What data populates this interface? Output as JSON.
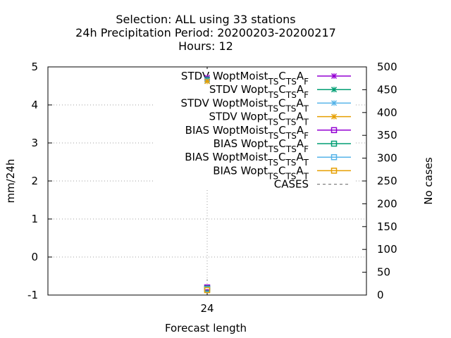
{
  "chart_data": {
    "type": "line",
    "title_lines": [
      "Selection: ALL using    33 stations",
      "24h Precipitation   Period: 20200203-20200217",
      "Hours:  12"
    ],
    "xlabel": "Forecast length",
    "ylabel": "mm/24h",
    "y2label": "No cases",
    "x": [
      24
    ],
    "x_tick_labels": [
      "24"
    ],
    "ylim": [
      -1,
      5
    ],
    "yticks": [
      -1,
      0,
      1,
      2,
      3,
      4,
      5
    ],
    "y_tick_labels": [
      "-1",
      "0",
      "1",
      "2",
      "3",
      "4",
      "5"
    ],
    "y2lim": [
      0,
      500
    ],
    "y2ticks": [
      0,
      50,
      100,
      150,
      200,
      250,
      300,
      350,
      400,
      450,
      500
    ],
    "y2_tick_labels": [
      "0",
      "50",
      "100",
      "150",
      "200",
      "250",
      "300",
      "350",
      "400",
      "450",
      "500"
    ],
    "grid": true,
    "series": [
      {
        "name": "STDV WoptMoist",
        "sub1": "TS",
        "mid": "C",
        "sub2": "TS",
        "tail": "A",
        "sub3": "F",
        "color": "#9400d3",
        "marker": "x",
        "axis": "y",
        "values": [
          4.72
        ]
      },
      {
        "name": "STDV Wopt",
        "sub1": "TS",
        "mid": "C",
        "sub2": "TS",
        "tail": "A",
        "sub3": "F",
        "color": "#009e73",
        "marker": "x",
        "axis": "y",
        "values": [
          4.68
        ]
      },
      {
        "name": "STDV WoptMoist",
        "sub1": "TS",
        "mid": "C",
        "sub2": "TS",
        "tail": "A",
        "sub3": "T",
        "color": "#56b4e9",
        "marker": "x",
        "axis": "y",
        "values": [
          4.64
        ]
      },
      {
        "name": "STDV Wopt",
        "sub1": "TS",
        "mid": "C",
        "sub2": "TS",
        "tail": "A",
        "sub3": "T",
        "color": "#e69f00",
        "marker": "x",
        "axis": "y",
        "values": [
          4.62
        ]
      },
      {
        "name": "BIAS WoptMoist",
        "sub1": "TS",
        "mid": "C",
        "sub2": "TS",
        "tail": "A",
        "sub3": "F",
        "color": "#9400d3",
        "marker": "square",
        "axis": "y",
        "values": [
          -0.8
        ]
      },
      {
        "name": "BIAS Wopt",
        "sub1": "TS",
        "mid": "C",
        "sub2": "TS",
        "tail": "A",
        "sub3": "F",
        "color": "#009e73",
        "marker": "square",
        "axis": "y",
        "values": [
          -0.83
        ]
      },
      {
        "name": "BIAS WoptMoist",
        "sub1": "TS",
        "mid": "C",
        "sub2": "TS",
        "tail": "A",
        "sub3": "T",
        "color": "#56b4e9",
        "marker": "square",
        "axis": "y",
        "values": [
          -0.85
        ]
      },
      {
        "name": "BIAS Wopt",
        "sub1": "TS",
        "mid": "C",
        "sub2": "TS",
        "tail": "A",
        "sub3": "T",
        "color": "#e69f00",
        "marker": "square",
        "axis": "y",
        "values": [
          -0.87
        ]
      },
      {
        "name": "CASES",
        "color": "#808080",
        "marker": "none",
        "dashed": true,
        "axis": "y2",
        "values": [
          33
        ]
      }
    ]
  }
}
